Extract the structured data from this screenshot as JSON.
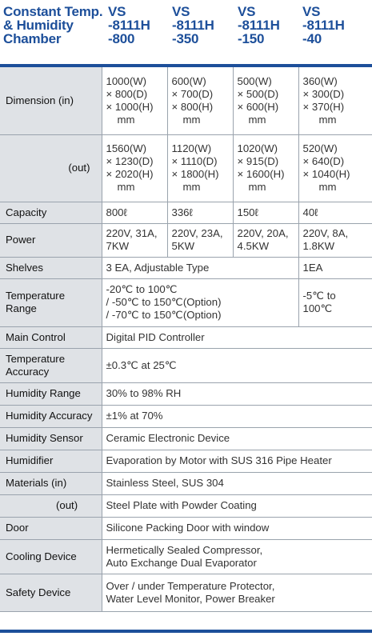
{
  "header": {
    "label_lines": [
      "Constant Temp.",
      "& Humidity",
      "Chamber"
    ],
    "models": [
      {
        "lines": [
          "VS",
          "-8111H",
          "-800"
        ]
      },
      {
        "lines": [
          "VS",
          "-8111H",
          "-350"
        ]
      },
      {
        "lines": [
          "VS",
          "-8111H",
          "-150"
        ]
      },
      {
        "lines": [
          "VS",
          "-8111H",
          "-40"
        ]
      }
    ]
  },
  "rows": {
    "dimension_in": {
      "label": "Dimension (in)",
      "cells": [
        [
          "1000(W)",
          "× 800(D)",
          "× 1000(H)",
          "mm"
        ],
        [
          "600(W)",
          "× 700(D)",
          "× 800(H)",
          "mm"
        ],
        [
          "500(W)",
          "× 500(D)",
          "× 600(H)",
          "mm"
        ],
        [
          "360(W)",
          "× 300(D)",
          "× 370(H)",
          "mm"
        ]
      ]
    },
    "dimension_out": {
      "label": "(out)",
      "cells": [
        [
          "1560(W)",
          "× 1230(D)",
          "× 2020(H)",
          "mm"
        ],
        [
          "1120(W)",
          "× 1110(D)",
          "× 1800(H)",
          "mm"
        ],
        [
          "1020(W)",
          "× 915(D)",
          "× 1600(H)",
          "mm"
        ],
        [
          "520(W)",
          "× 640(D)",
          "× 1040(H)",
          "mm"
        ]
      ]
    },
    "capacity": {
      "label": "Capacity",
      "cells": [
        "800ℓ",
        "336ℓ",
        "150ℓ",
        "40ℓ"
      ]
    },
    "power": {
      "label": "Power",
      "cells": [
        [
          "220V, 31A,",
          "7KW"
        ],
        [
          "220V, 23A,",
          "5KW"
        ],
        [
          "220V, 20A,",
          "4.5KW"
        ],
        [
          "220V, 8A,",
          "1.8KW"
        ]
      ]
    },
    "shelves": {
      "label": "Shelves",
      "main": "3 EA, Adjustable Type",
      "last": "1EA"
    },
    "temperature_range": {
      "label_lines": [
        "Temperature",
        "Range"
      ],
      "main_lines": [
        "-20℃ to 100℃",
        "/ -50℃ to 150℃(Option)",
        "/ -70℃ to 150℃(Option)"
      ],
      "last_lines": [
        "-5℃ to",
        "100℃"
      ]
    },
    "main_control": {
      "label": "Main Control",
      "value": "Digital PID Controller"
    },
    "temperature_accuracy": {
      "label_lines": [
        "Temperature",
        "Accuracy"
      ],
      "value": "±0.3℃ at 25℃"
    },
    "humidity_range": {
      "label": "Humidity Range",
      "value": "30% to 98% RH"
    },
    "humidity_accuracy": {
      "label": "Humidity Accuracy",
      "value": "±1% at 70%"
    },
    "humidity_sensor": {
      "label": "Humidity Sensor",
      "value": "Ceramic Electronic Device"
    },
    "humidifier": {
      "label": "Humidifier",
      "value": "Evaporation by Motor with SUS 316 Pipe Heater"
    },
    "materials_in": {
      "label": "Materials (in)",
      "value": "Stainless Steel, SUS 304"
    },
    "materials_out": {
      "label": "(out)",
      "value": "Steel Plate with Powder Coating"
    },
    "door": {
      "label": "Door",
      "value": "Silicone Packing Door with window"
    },
    "cooling_device": {
      "label": "Cooling Device",
      "value_lines": [
        "Hermetically Sealed Compressor,",
        "Auto Exchange Dual Evaporator"
      ]
    },
    "safety_device": {
      "label": "Safety Device",
      "value_lines": [
        "Over / under Temperature Protector,",
        "Water Level Monitor, Power Breaker"
      ]
    }
  },
  "colors": {
    "brand_blue": "#1d4f9a",
    "label_bg": "#dfe2e6",
    "rule": "#9aa3ad"
  }
}
